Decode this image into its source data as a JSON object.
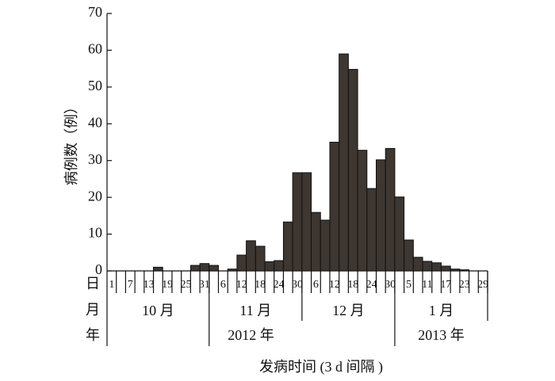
{
  "chart_data": {
    "type": "bar",
    "ylabel": "病例数（例）",
    "xlabel": "发病时间 (3  d 间隔 )",
    "row_labels": [
      "日",
      "月",
      "年"
    ],
    "categories": [
      "1",
      null,
      "7",
      null,
      "13",
      null,
      "19",
      null,
      "25",
      null,
      "31",
      null,
      "6",
      null,
      "12",
      null,
      "18",
      null,
      "24",
      null,
      "30",
      null,
      "6",
      null,
      "12",
      null,
      "18",
      null,
      "24",
      null,
      "30",
      null,
      "5",
      null,
      "11",
      null,
      "17",
      null,
      "23",
      null,
      "29"
    ],
    "values": [
      0,
      0,
      0,
      0,
      0,
      1,
      0,
      0,
      0,
      1.5,
      2,
      1.5,
      0,
      0.5,
      4.3,
      8.2,
      6.7,
      2.5,
      2.8,
      13.3,
      26.7,
      26.7,
      15.9,
      13.8,
      35,
      59,
      54.8,
      32.8,
      22.4,
      30.2,
      33.3,
      20.1,
      8.4,
      3.7,
      2.6,
      2.2,
      1.3,
      0.5,
      0.3,
      0,
      0
    ],
    "months": [
      "10 月",
      "11 月",
      "12 月",
      "1 月"
    ],
    "years": [
      "2012 年",
      "2013 年"
    ],
    "color": "#3d3631",
    "ylim": [
      0,
      70
    ],
    "yticks": [
      0,
      10,
      20,
      30,
      40,
      50,
      60,
      70
    ]
  }
}
